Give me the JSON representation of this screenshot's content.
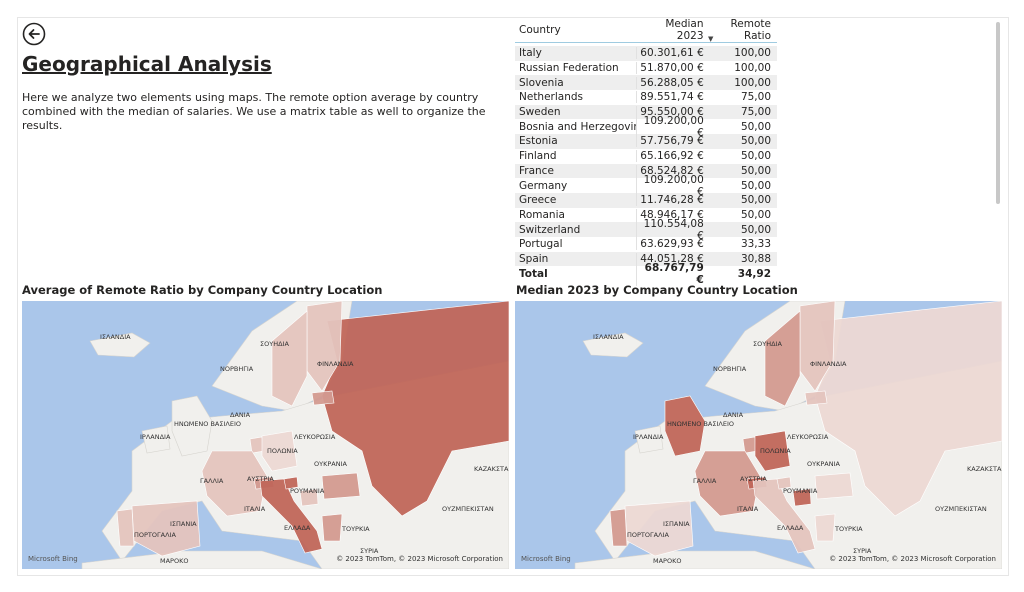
{
  "page": {
    "title": "Geographical Analysis",
    "description": "Here we analyze two elements using maps. The remote option average by country combined with the median of salaries. We use a matrix table as well to organize the results."
  },
  "matrix": {
    "headers": {
      "country": "Country",
      "median": "Median 2023",
      "remote": "Remote Ratio"
    },
    "rows": [
      {
        "country": "Italy",
        "median": "60.301,61 €",
        "remote": "100,00"
      },
      {
        "country": "Russian Federation",
        "median": "51.870,00 €",
        "remote": "100,00"
      },
      {
        "country": "Slovenia",
        "median": "56.288,05 €",
        "remote": "100,00"
      },
      {
        "country": "Netherlands",
        "median": "89.551,74 €",
        "remote": "75,00"
      },
      {
        "country": "Sweden",
        "median": "95.550,00 €",
        "remote": "75,00"
      },
      {
        "country": "Bosnia and Herzegovina",
        "median": "109.200,00 €",
        "remote": "50,00"
      },
      {
        "country": "Estonia",
        "median": "57.756,79 €",
        "remote": "50,00"
      },
      {
        "country": "Finland",
        "median": "65.166,92 €",
        "remote": "50,00"
      },
      {
        "country": "France",
        "median": "68.524,82 €",
        "remote": "50,00"
      },
      {
        "country": "Germany",
        "median": "109.200,00 €",
        "remote": "50,00"
      },
      {
        "country": "Greece",
        "median": "11.746,28 €",
        "remote": "50,00"
      },
      {
        "country": "Romania",
        "median": "48.946,17 €",
        "remote": "50,00"
      },
      {
        "country": "Switzerland",
        "median": "110.554,08 €",
        "remote": "50,00"
      },
      {
        "country": "Portugal",
        "median": "63.629,93 €",
        "remote": "33,33"
      },
      {
        "country": "Spain",
        "median": "44.051,28 €",
        "remote": "30,88"
      }
    ],
    "total": {
      "label": "Total",
      "median": "68.767,79 €",
      "remote": "34,92"
    }
  },
  "maps": {
    "left_title": "Average of Remote Ratio by Company Country Location",
    "right_title": "Median 2023 by Company Country Location",
    "bing": "Microsoft Bing",
    "copyright": "© 2023 TomTom, © 2023 Microsoft Corporation",
    "labels": {
      "iceland": "ΙΣΛΑΝΔΙΑ",
      "sweden": "ΣΟΥΗΔΙΑ",
      "norway": "ΝΟΡΒΗΓΙΑ",
      "finland": "ΦΙΝΛΑΝΔΙΑ",
      "uk": "ΗΝΩΜΕΝΟ ΒΑΣΙΛΕΙΟ",
      "ireland": "ΙΡΛΑΝΔΙΑ",
      "denmark": "ΔΑΝΙΑ",
      "belarus": "ΛΕΥΚΟΡΩΣΙΑ",
      "poland": "ΠΟΛΩΝΙΑ",
      "ukraine": "ΟΥΚΡΑΝΙΑ",
      "kazakhstan": "ΚΑΖΑΚΣΤΑΝ",
      "france": "ΓΑΛΛΙΑ",
      "austria": "ΑΥΣΤΡΙΑ",
      "romania": "ΡΟΥΜΑΝΙΑ",
      "italy": "ΙΤΑΛΙΑ",
      "spain": "ΙΣΠΑΝΙΑ",
      "portugal": "ΠΟΡΤΟΓΑΛΙΑ",
      "greece": "ΕΛΛΑΔΑ",
      "turkey": "ΤΟΥΡΚΙΑ",
      "uzbekistan": "ΟΥΖΜΠΕΚΙΣΤΑΝ",
      "syria": "ΣΥΡΙΑ",
      "morocco": "ΜΑΡΟΚΟ"
    }
  },
  "colors": {
    "water": "#aac6ea",
    "land": "#f1f0ed",
    "dark": "#c0665a",
    "mid": "#d39a90",
    "light": "#e4c4be",
    "pale": "#ecd8d4"
  }
}
